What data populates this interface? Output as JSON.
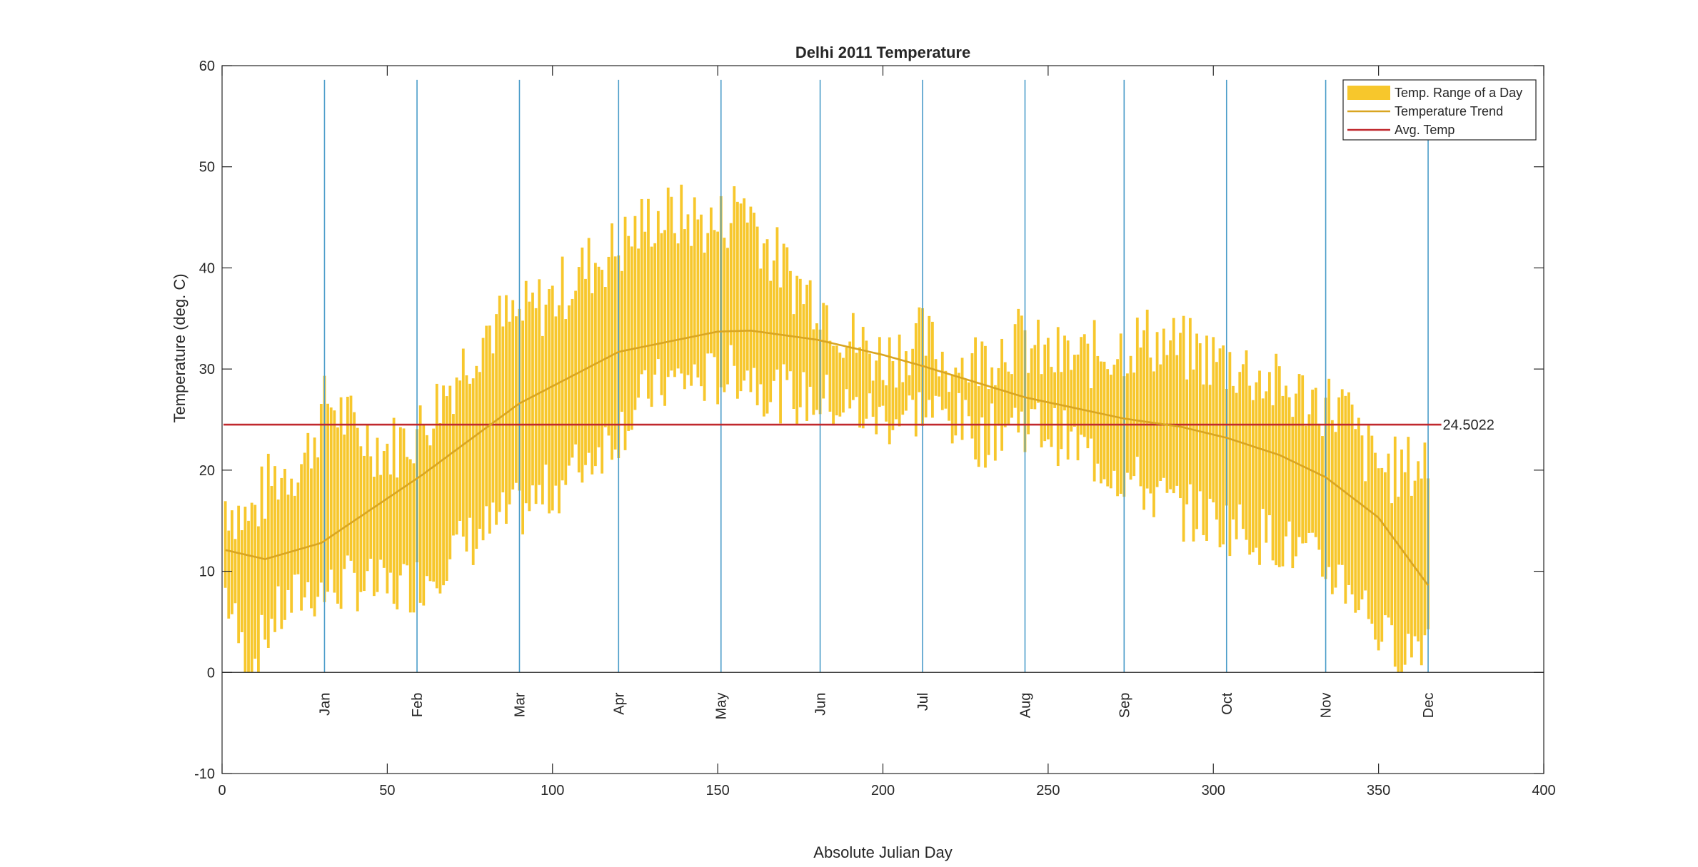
{
  "chart_data": {
    "type": "bar",
    "title": "Delhi 2011 Temperature",
    "xlabel": "Absolute Julian Day",
    "ylabel": "Temperature (deg. C)",
    "xlim": [
      0,
      400
    ],
    "ylim": [
      -10,
      60
    ],
    "xticks": [
      0,
      50,
      100,
      150,
      200,
      250,
      300,
      350,
      400
    ],
    "yticks": [
      -10,
      0,
      10,
      20,
      30,
      40,
      50,
      60
    ],
    "grid": false,
    "legend": {
      "placement": "top-right",
      "entries": [
        "Temp. Range of a Day",
        "Temperature Trend",
        "Avg. Temp"
      ]
    },
    "colors": {
      "range_bars": "#F7C72C",
      "trend": "#D9A521",
      "avg": "#C0282D",
      "month_lines": "#4A9CC9",
      "axis": "#262626"
    },
    "avg_temp": {
      "value": 24.5022,
      "label": "24.5022"
    },
    "month_lines": [
      {
        "label": "Jan",
        "day": 31
      },
      {
        "label": "Feb",
        "day": 59
      },
      {
        "label": "Mar",
        "day": 90
      },
      {
        "label": "Apr",
        "day": 120
      },
      {
        "label": "May",
        "day": 151
      },
      {
        "label": "Jun",
        "day": 181
      },
      {
        "label": "Jul",
        "day": 212
      },
      {
        "label": "Aug",
        "day": 243
      },
      {
        "label": "Sep",
        "day": 273
      },
      {
        "label": "Oct",
        "day": 304
      },
      {
        "label": "Nov",
        "day": 334
      },
      {
        "label": "Dec",
        "day": 365
      }
    ],
    "range_keypoints": {
      "day": [
        1,
        8,
        15,
        25,
        32,
        40,
        50,
        60,
        70,
        80,
        90,
        100,
        110,
        120,
        130,
        140,
        150,
        158,
        165,
        175,
        181,
        190,
        200,
        212,
        222,
        230,
        240,
        250,
        260,
        270,
        280,
        290,
        300,
        310,
        320,
        330,
        340,
        345,
        352,
        358,
        365
      ],
      "high": [
        17,
        15,
        19,
        21,
        27,
        24,
        22,
        24,
        29,
        34,
        35,
        37,
        40,
        42,
        45,
        45,
        44,
        47,
        42,
        38,
        37,
        33,
        31,
        33,
        30,
        31,
        33,
        31,
        31,
        32,
        33,
        32,
        31,
        30,
        28,
        27,
        26,
        22,
        20,
        20,
        21
      ],
      "low": [
        8,
        0,
        5,
        8,
        8,
        9,
        8,
        9,
        12,
        14,
        16,
        18,
        21,
        24,
        28,
        29,
        29,
        30,
        28,
        27,
        27,
        26,
        25,
        26,
        25,
        23,
        25,
        24,
        22,
        20,
        18,
        16,
        15,
        14,
        13,
        11,
        9,
        7,
        3,
        2,
        4
      ]
    },
    "trend": {
      "day": [
        1,
        13,
        30,
        60,
        90,
        120,
        150,
        160,
        180,
        200,
        212,
        243,
        273,
        290,
        304,
        320,
        334,
        350,
        365
      ],
      "value": [
        12.1,
        11.2,
        12.8,
        19.4,
        26.6,
        31.7,
        33.7,
        33.8,
        32.9,
        31.4,
        30.3,
        27.2,
        25.1,
        24.3,
        23.2,
        21.5,
        19.3,
        15.3,
        8.6
      ]
    }
  }
}
